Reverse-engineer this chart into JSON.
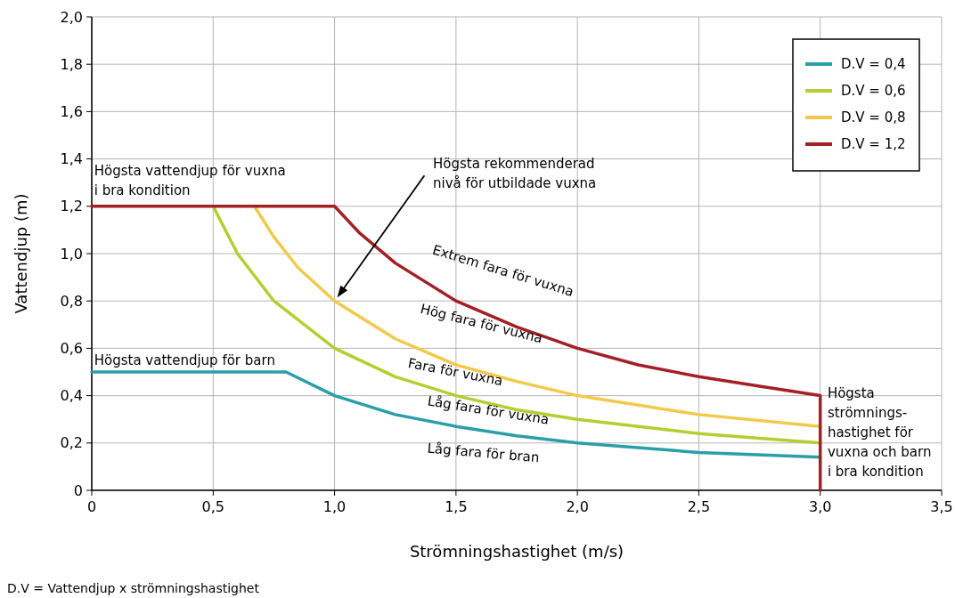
{
  "chart_data": {
    "type": "line",
    "xlabel": "Strömningshastighet (m/s)",
    "ylabel": "Vattendjup (m)",
    "xlim": [
      0,
      3.5
    ],
    "ylim": [
      0,
      2
    ],
    "xticks": [
      0,
      {
        "value": 0.5,
        "label": "0,5"
      },
      {
        "value": 1,
        "label": "1,0"
      },
      {
        "value": 1.5,
        "label": "1,5"
      },
      {
        "value": 2,
        "label": "2,0"
      },
      {
        "value": 2.5,
        "label": "2,5"
      },
      {
        "value": 3,
        "label": "3,0"
      },
      {
        "value": 3.5,
        "label": "3,5"
      }
    ],
    "yticks": [
      0,
      {
        "value": 0.2,
        "label": "0,2"
      },
      {
        "value": 0.4,
        "label": "0,4"
      },
      {
        "value": 0.6,
        "label": "0,6"
      },
      {
        "value": 0.8,
        "label": "0,8"
      },
      {
        "value": 1,
        "label": "1,0"
      },
      {
        "value": 1.2,
        "label": "1,2"
      },
      {
        "value": 1.4,
        "label": "1,4"
      },
      {
        "value": 1.6,
        "label": "1,6"
      },
      {
        "value": 1.8,
        "label": "1,8"
      },
      {
        "value": 2,
        "label": "2,0"
      }
    ],
    "grid": true,
    "legend": "top right",
    "marker": "none",
    "line_style": "solid",
    "series": [
      {
        "name": "D.V = 0,4",
        "color": "#2a9fa8",
        "x": [
          0,
          0.8,
          1,
          1.25,
          1.5,
          1.75,
          2,
          2.5,
          3
        ],
        "values": [
          0.5,
          0.5,
          0.4,
          0.32,
          0.27,
          0.23,
          0.2,
          0.16,
          0.14
        ]
      },
      {
        "name": "D.V = 0,6",
        "color": "#b3cf30",
        "x": [
          0.5,
          0.6,
          0.75,
          1,
          1.25,
          1.5,
          1.75,
          2,
          2.5,
          3
        ],
        "values": [
          1.2,
          1,
          0.8,
          0.6,
          0.48,
          0.4,
          0.34,
          0.3,
          0.24,
          0.2
        ]
      },
      {
        "name": "D.V = 0,8",
        "color": "#f2c94a",
        "x": [
          0.67,
          0.75,
          0.85,
          1,
          1.25,
          1.5,
          1.75,
          2,
          2.5,
          3
        ],
        "values": [
          1.2,
          1.07,
          0.94,
          0.8,
          0.64,
          0.53,
          0.46,
          0.4,
          0.32,
          0.27
        ]
      },
      {
        "name": "D.V = 1,2",
        "color": "#a32025",
        "x": [
          0,
          1,
          1.1,
          1.25,
          1.5,
          1.75,
          2,
          2.25,
          2.5,
          2.75,
          3,
          3
        ],
        "values": [
          1.2,
          1.2,
          1.09,
          0.96,
          0.8,
          0.69,
          0.6,
          0.53,
          0.48,
          0.44,
          0.4,
          0
        ]
      }
    ],
    "annotations": [
      "Högsta vattendjup för vuxna\ni bra kondition",
      "Högsta vattendjup för barn",
      "Högsta rekommenderad\nnivå för utbildade vuxna",
      "Extrem fara för vuxna",
      "Hög fara för vuxna",
      "Fara för vuxna",
      "Låg fara för vuxna",
      "Låg fara för bran",
      "Högsta\nströmnings-\nhastighet för\nvuxna och barn\ni bra kondition",
      "D.V  = Vattendjup x strömningshastighet"
    ]
  }
}
